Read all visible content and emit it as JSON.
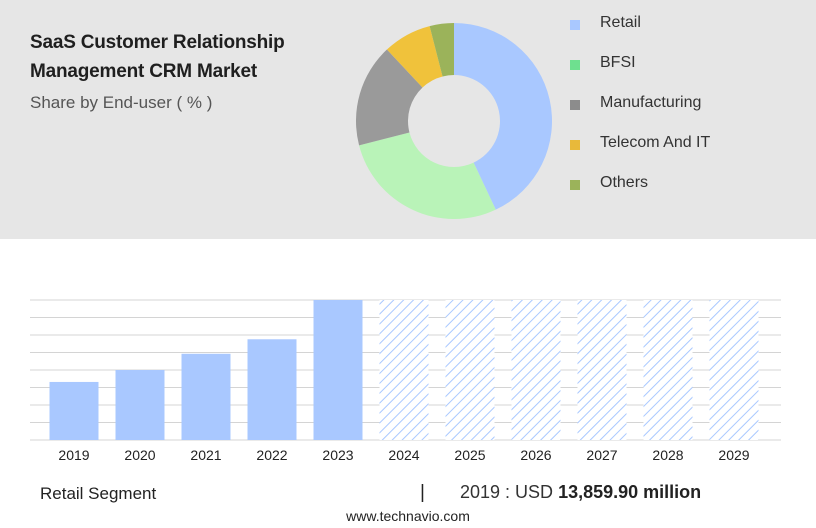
{
  "header": {
    "title_line1": "SaaS Customer Relationship",
    "title_line2": "Management CRM Market",
    "subtitle": "Share by End-user ( % )"
  },
  "chart_data": [
    {
      "type": "pie",
      "variant": "donut",
      "title": "Share by End-user ( % )",
      "labels": [
        "Retail",
        "BFSI",
        "Manufacturing",
        "Telecom And IT",
        "Others"
      ],
      "values": [
        43,
        28,
        17,
        8,
        4
      ],
      "colors": [
        "#a9c8ff",
        "#b9f3b8",
        "#9a9a9a",
        "#f0c23b",
        "#9bb35a"
      ],
      "legend_swatch_colors": [
        "#a9c8ff",
        "#6ee08f",
        "#8c8c8c",
        "#e8b93a",
        "#9bb35a"
      ],
      "legend_position": "right"
    },
    {
      "type": "bar",
      "categories": [
        "2019",
        "2020",
        "2021",
        "2022",
        "2023",
        "2024",
        "2025",
        "2026",
        "2027",
        "2028",
        "2029"
      ],
      "values": [
        3.4,
        4.1,
        5.05,
        5.9,
        8.2,
        8.2,
        8.2,
        8.2,
        8.2,
        8.2,
        8.2
      ],
      "forecast_from": "2024",
      "ylim": [
        0,
        8.2
      ],
      "grid": true,
      "colors": {
        "actual": "#a9c8ff",
        "forecast_hatch": "#a9c8ff"
      }
    }
  ],
  "footer": {
    "segment": "Retail Segment",
    "divider": "|",
    "value_prefix": "2019 : USD",
    "value": "13,859.90 million",
    "source": "www.technavio.com"
  }
}
